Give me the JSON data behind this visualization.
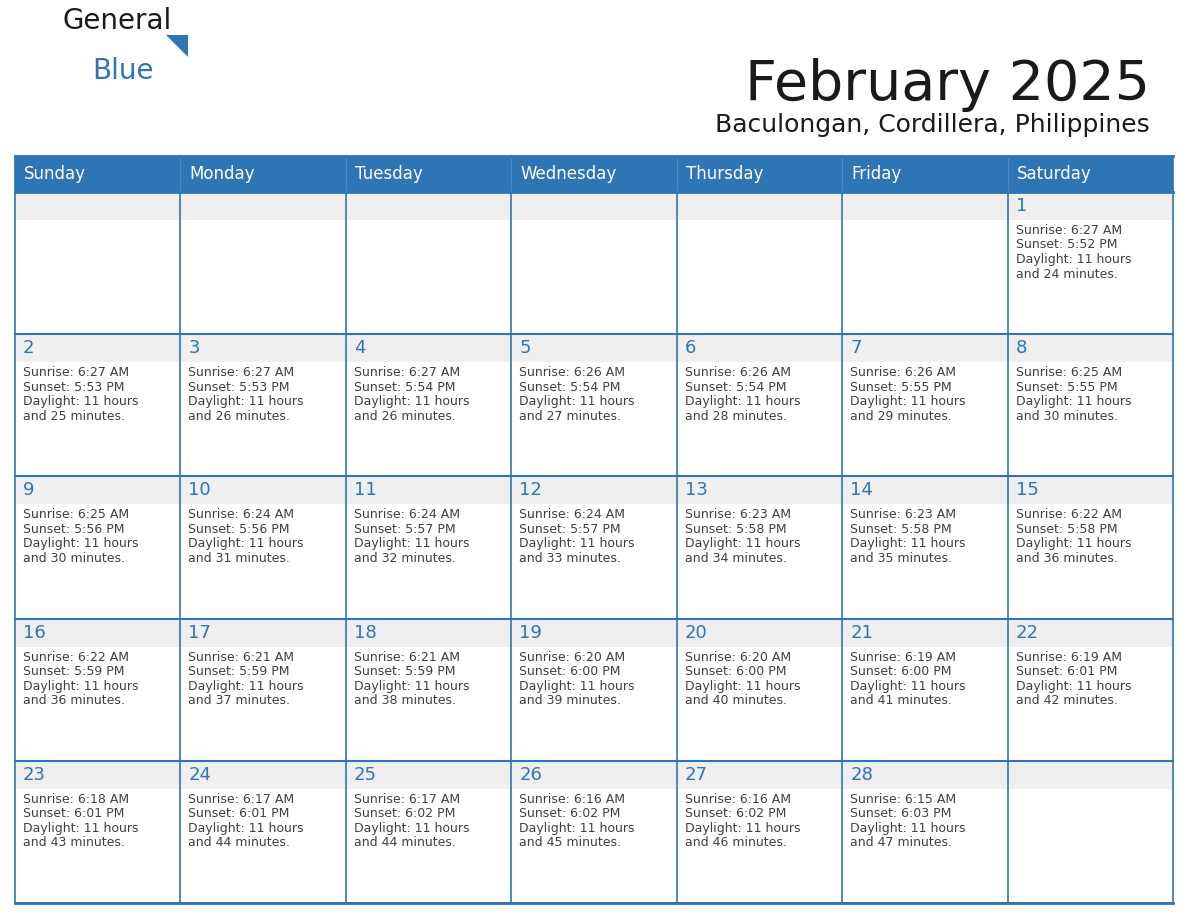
{
  "title": "February 2025",
  "subtitle": "Baculongan, Cordillera, Philippines",
  "days_of_week": [
    "Sunday",
    "Monday",
    "Tuesday",
    "Wednesday",
    "Thursday",
    "Friday",
    "Saturday"
  ],
  "header_bg": "#2E75B6",
  "header_text": "#FFFFFF",
  "cell_bg_top": "#EFEFEF",
  "cell_bg_bottom": "#FFFFFF",
  "border_color": "#2E75B6",
  "day_num_color": "#2E75B6",
  "text_color": "#404040",
  "logo_general_color": "#1a1a1a",
  "logo_blue_color": "#2E75B6",
  "calendar_data": [
    [
      null,
      null,
      null,
      null,
      null,
      null,
      {
        "day": 1,
        "sunrise": "6:27 AM",
        "sunset": "5:52 PM",
        "daylight": "11 hours and 24 minutes."
      }
    ],
    [
      {
        "day": 2,
        "sunrise": "6:27 AM",
        "sunset": "5:53 PM",
        "daylight": "11 hours and 25 minutes."
      },
      {
        "day": 3,
        "sunrise": "6:27 AM",
        "sunset": "5:53 PM",
        "daylight": "11 hours and 26 minutes."
      },
      {
        "day": 4,
        "sunrise": "6:27 AM",
        "sunset": "5:54 PM",
        "daylight": "11 hours and 26 minutes."
      },
      {
        "day": 5,
        "sunrise": "6:26 AM",
        "sunset": "5:54 PM",
        "daylight": "11 hours and 27 minutes."
      },
      {
        "day": 6,
        "sunrise": "6:26 AM",
        "sunset": "5:54 PM",
        "daylight": "11 hours and 28 minutes."
      },
      {
        "day": 7,
        "sunrise": "6:26 AM",
        "sunset": "5:55 PM",
        "daylight": "11 hours and 29 minutes."
      },
      {
        "day": 8,
        "sunrise": "6:25 AM",
        "sunset": "5:55 PM",
        "daylight": "11 hours and 30 minutes."
      }
    ],
    [
      {
        "day": 9,
        "sunrise": "6:25 AM",
        "sunset": "5:56 PM",
        "daylight": "11 hours and 30 minutes."
      },
      {
        "day": 10,
        "sunrise": "6:24 AM",
        "sunset": "5:56 PM",
        "daylight": "11 hours and 31 minutes."
      },
      {
        "day": 11,
        "sunrise": "6:24 AM",
        "sunset": "5:57 PM",
        "daylight": "11 hours and 32 minutes."
      },
      {
        "day": 12,
        "sunrise": "6:24 AM",
        "sunset": "5:57 PM",
        "daylight": "11 hours and 33 minutes."
      },
      {
        "day": 13,
        "sunrise": "6:23 AM",
        "sunset": "5:58 PM",
        "daylight": "11 hours and 34 minutes."
      },
      {
        "day": 14,
        "sunrise": "6:23 AM",
        "sunset": "5:58 PM",
        "daylight": "11 hours and 35 minutes."
      },
      {
        "day": 15,
        "sunrise": "6:22 AM",
        "sunset": "5:58 PM",
        "daylight": "11 hours and 36 minutes."
      }
    ],
    [
      {
        "day": 16,
        "sunrise": "6:22 AM",
        "sunset": "5:59 PM",
        "daylight": "11 hours and 36 minutes."
      },
      {
        "day": 17,
        "sunrise": "6:21 AM",
        "sunset": "5:59 PM",
        "daylight": "11 hours and 37 minutes."
      },
      {
        "day": 18,
        "sunrise": "6:21 AM",
        "sunset": "5:59 PM",
        "daylight": "11 hours and 38 minutes."
      },
      {
        "day": 19,
        "sunrise": "6:20 AM",
        "sunset": "6:00 PM",
        "daylight": "11 hours and 39 minutes."
      },
      {
        "day": 20,
        "sunrise": "6:20 AM",
        "sunset": "6:00 PM",
        "daylight": "11 hours and 40 minutes."
      },
      {
        "day": 21,
        "sunrise": "6:19 AM",
        "sunset": "6:00 PM",
        "daylight": "11 hours and 41 minutes."
      },
      {
        "day": 22,
        "sunrise": "6:19 AM",
        "sunset": "6:01 PM",
        "daylight": "11 hours and 42 minutes."
      }
    ],
    [
      {
        "day": 23,
        "sunrise": "6:18 AM",
        "sunset": "6:01 PM",
        "daylight": "11 hours and 43 minutes."
      },
      {
        "day": 24,
        "sunrise": "6:17 AM",
        "sunset": "6:01 PM",
        "daylight": "11 hours and 44 minutes."
      },
      {
        "day": 25,
        "sunrise": "6:17 AM",
        "sunset": "6:02 PM",
        "daylight": "11 hours and 44 minutes."
      },
      {
        "day": 26,
        "sunrise": "6:16 AM",
        "sunset": "6:02 PM",
        "daylight": "11 hours and 45 minutes."
      },
      {
        "day": 27,
        "sunrise": "6:16 AM",
        "sunset": "6:02 PM",
        "daylight": "11 hours and 46 minutes."
      },
      {
        "day": 28,
        "sunrise": "6:15 AM",
        "sunset": "6:03 PM",
        "daylight": "11 hours and 47 minutes."
      },
      null
    ]
  ]
}
